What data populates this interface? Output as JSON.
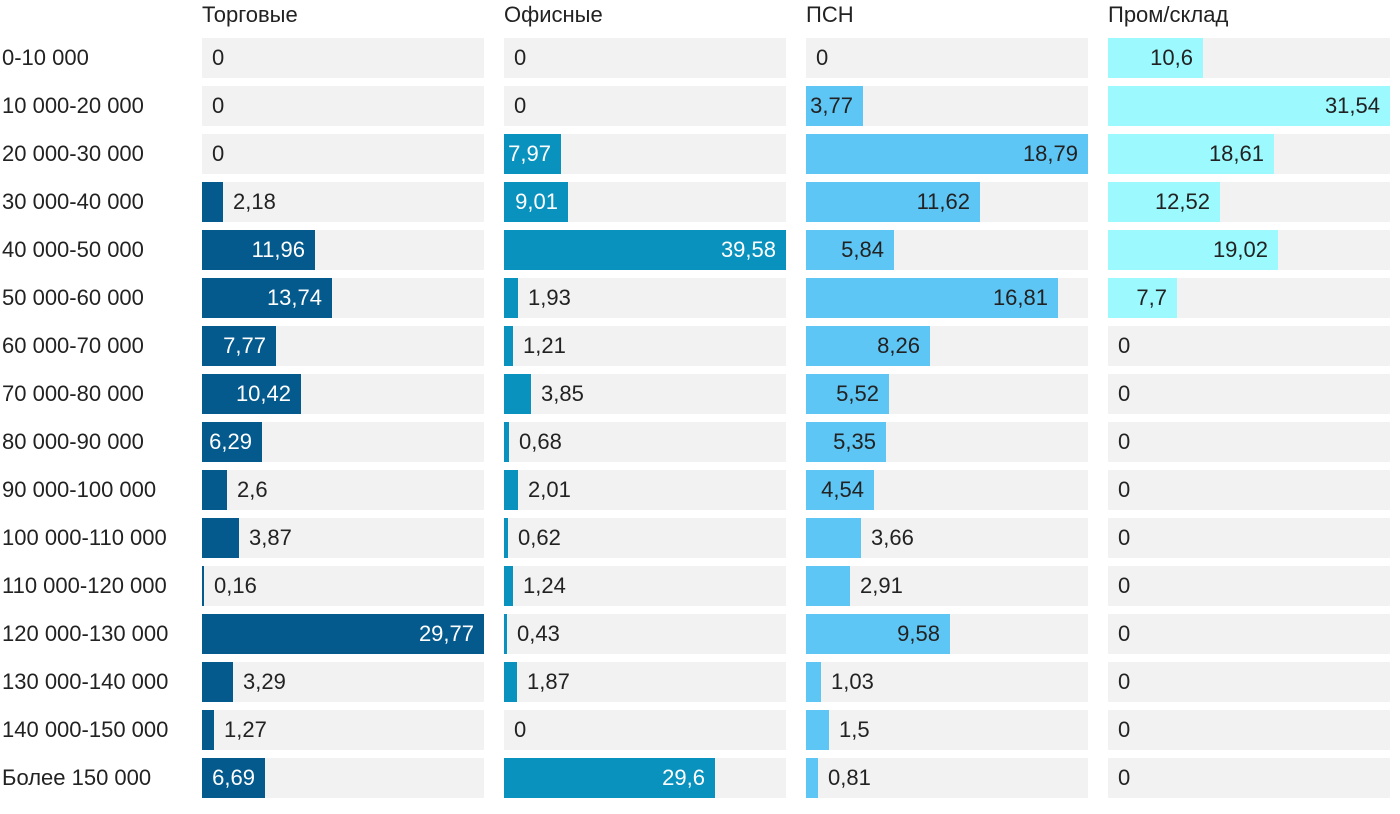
{
  "chart_data": {
    "type": "bar",
    "orientation": "horizontal",
    "layout": "small-multiples",
    "grid": false,
    "categories": [
      "0-10 000",
      "10 000-20 000",
      "20 000-30 000",
      "30 000-40 000",
      "40 000-50 000",
      "50 000-60 000",
      "60 000-70 000",
      "70 000-80 000",
      "80 000-90 000",
      "90 000-100 000",
      "100 000-110 000",
      "110 000-120 000",
      "120 000-130 000",
      "130 000-140 000",
      "140 000-150 000",
      "Более 150 000"
    ],
    "series": [
      {
        "name": "Торговые",
        "color": "#045a8d",
        "xlim": [
          0,
          29.77
        ],
        "values": [
          0,
          0,
          0,
          2.18,
          11.96,
          13.74,
          7.77,
          10.42,
          6.29,
          2.6,
          3.87,
          0.16,
          29.77,
          3.29,
          1.27,
          6.69
        ],
        "labels": [
          "0",
          "0",
          "0",
          "2,18",
          "11,96",
          "13,74",
          "7,77",
          "10,42",
          "6,29",
          "2,6",
          "3,87",
          "0,16",
          "29,77",
          "3,29",
          "1,27",
          "6,69"
        ]
      },
      {
        "name": "Офисные",
        "color": "#0a92bf",
        "xlim": [
          0,
          39.58
        ],
        "values": [
          0,
          0,
          7.97,
          9.01,
          39.58,
          1.93,
          1.21,
          3.85,
          0.68,
          2.01,
          0.62,
          1.24,
          0.43,
          1.87,
          0,
          29.6
        ],
        "labels": [
          "0",
          "0",
          "7,97",
          "9,01",
          "39,58",
          "1,93",
          "1,21",
          "3,85",
          "0,68",
          "2,01",
          "0,62",
          "1,24",
          "0,43",
          "1,87",
          "0",
          "29,6"
        ]
      },
      {
        "name": "ПСН",
        "color": "#5ec6f5",
        "xlim": [
          0,
          18.79
        ],
        "values": [
          0,
          3.77,
          18.79,
          11.62,
          5.84,
          16.81,
          8.26,
          5.52,
          5.35,
          4.54,
          3.66,
          2.91,
          9.58,
          1.03,
          1.5,
          0.81
        ],
        "labels": [
          "0",
          "3,77",
          "18,79",
          "11,62",
          "5,84",
          "16,81",
          "8,26",
          "5,52",
          "5,35",
          "4,54",
          "3,66",
          "2,91",
          "9,58",
          "1,03",
          "1,5",
          "0,81"
        ]
      },
      {
        "name": "Пром/склад",
        "color": "#9cfaff",
        "xlim": [
          0,
          31.54
        ],
        "values": [
          10.6,
          31.54,
          18.61,
          12.52,
          19.02,
          7.7,
          0,
          0,
          0,
          0,
          0,
          0,
          0,
          0,
          0,
          0
        ],
        "labels": [
          "10,6",
          "31,54",
          "18,61",
          "12,52",
          "19,02",
          "7,7",
          "0",
          "0",
          "0",
          "0",
          "0",
          "0",
          "0",
          "0",
          "0",
          "0"
        ]
      }
    ],
    "label_colors": {
      "inside_dark_bar": "#ffffff",
      "inside_light_bar": "#222222",
      "outside": "#222222"
    }
  }
}
